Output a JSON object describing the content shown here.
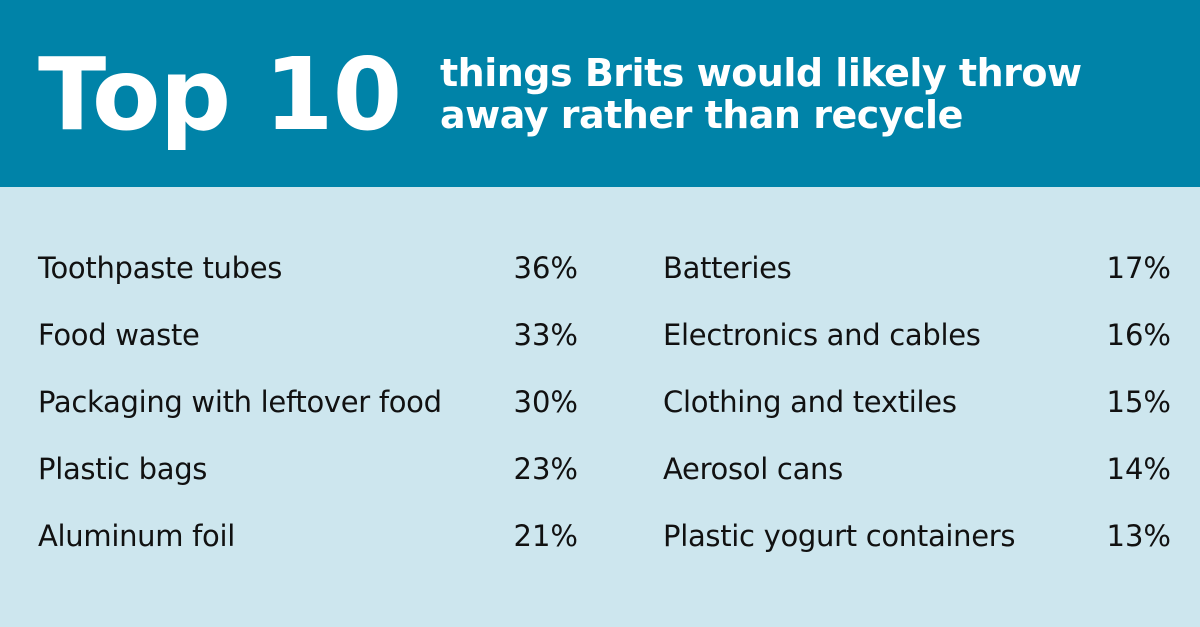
{
  "header": {
    "title": "Top 10",
    "subtitle_line1": "things Brits would likely throw",
    "subtitle_line2": "away rather than recycle"
  },
  "colors": {
    "header_bg": "#0083a8",
    "body_bg": "#cde6ee",
    "header_text": "#ffffff",
    "body_text": "#111111"
  },
  "items_left": [
    {
      "label": "Toothpaste tubes",
      "percent": "36%"
    },
    {
      "label": "Food waste",
      "percent": "33%"
    },
    {
      "label": "Packaging with leftover food",
      "percent": "30%"
    },
    {
      "label": "Plastic bags",
      "percent": "23%"
    },
    {
      "label": "Aluminum foil",
      "percent": "21%"
    }
  ],
  "items_right": [
    {
      "label": "Batteries",
      "percent": "17%"
    },
    {
      "label": "Electronics and cables",
      "percent": "16%"
    },
    {
      "label": "Clothing and textiles",
      "percent": "15%"
    },
    {
      "label": "Aerosol cans",
      "percent": "14%"
    },
    {
      "label": "Plastic yogurt containers",
      "percent": "13%"
    }
  ]
}
